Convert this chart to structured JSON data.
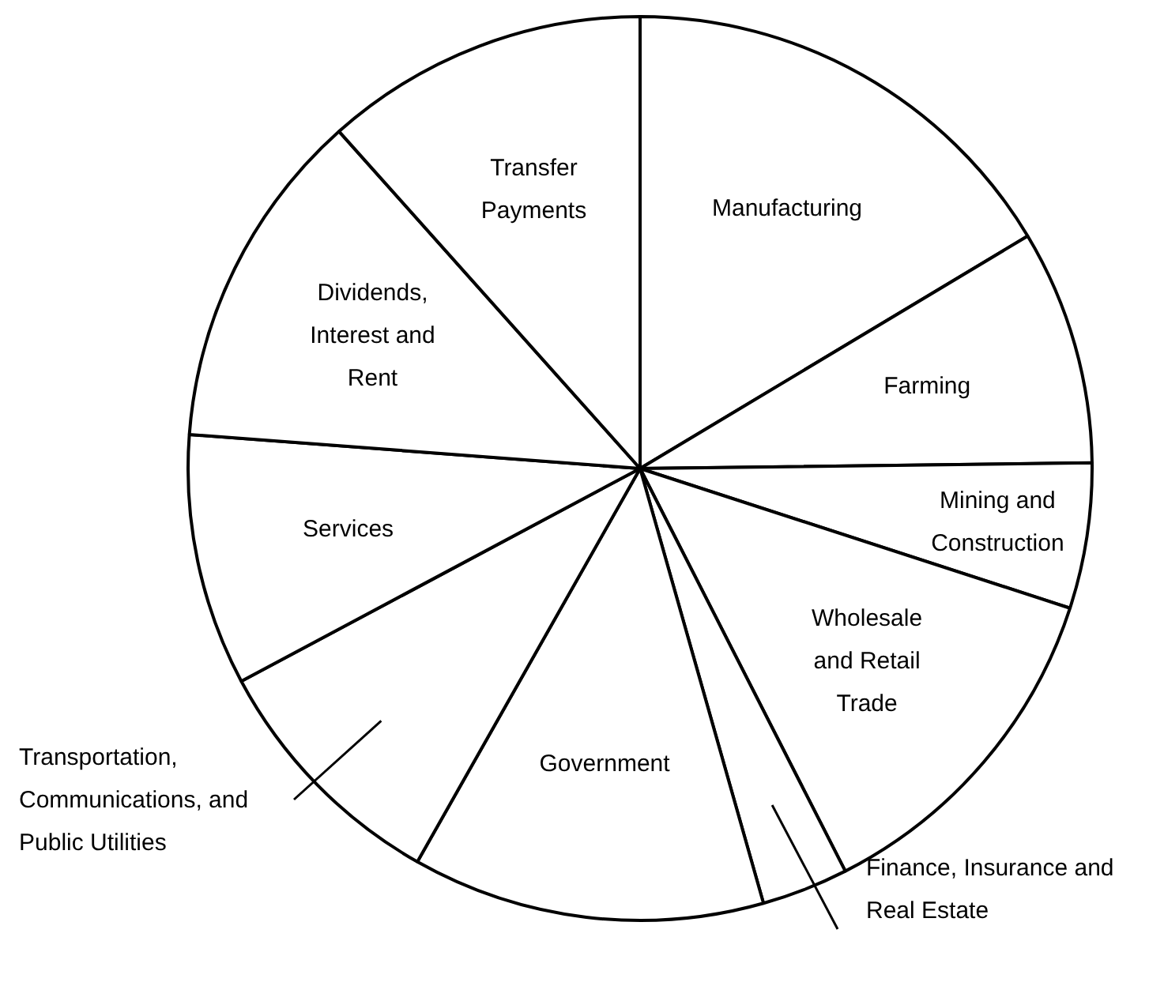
{
  "chart_data": {
    "type": "pie",
    "categories": [
      "Manufacturing",
      "Farming",
      "Mining and Construction",
      "Wholesale and Retail Trade",
      "Finance, Insurance and Real Estate",
      "Government",
      "Transportation, Communications, and Public Utilities",
      "Services",
      "Dividends, Interest and Rent",
      "Transfer Payments"
    ],
    "values": [
      16.4,
      8.4,
      5.2,
      12.5,
      3.1,
      12.6,
      9.0,
      9.0,
      12.2,
      11.6
    ],
    "colors": [
      "#ffffff",
      "#ffffff",
      "#ffffff",
      "#ffffff",
      "#ffffff",
      "#ffffff",
      "#ffffff",
      "#ffffff",
      "#ffffff",
      "#ffffff"
    ]
  }
}
